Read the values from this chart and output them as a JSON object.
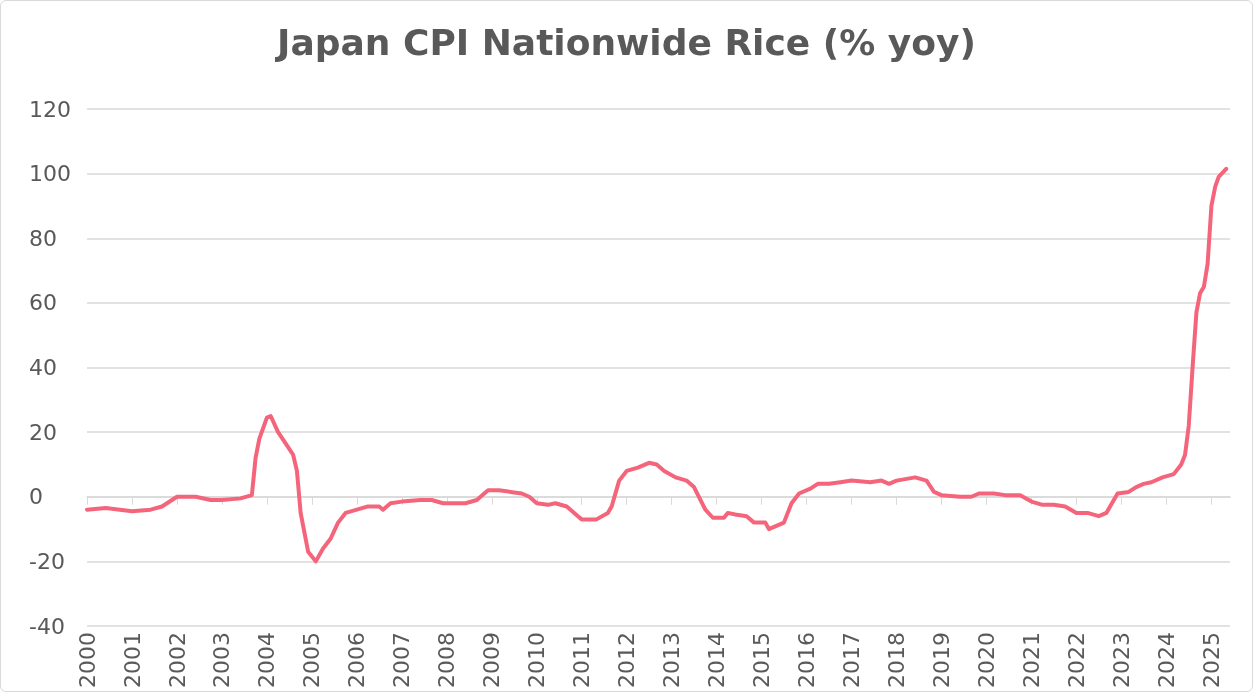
{
  "chart_data": {
    "type": "line",
    "title": "Japan CPI Nationwide Rice (% yoy)",
    "x": [
      "2000-01",
      "2000-06",
      "2001-01",
      "2001-06",
      "2001-09",
      "2002-01",
      "2002-06",
      "2002-10",
      "2003-01",
      "2003-06",
      "2003-09",
      "2003-10",
      "2003-11",
      "2004-01",
      "2004-02",
      "2004-04",
      "2004-06",
      "2004-08",
      "2004-09",
      "2004-10",
      "2004-12",
      "2005-02",
      "2005-04",
      "2005-06",
      "2005-08",
      "2005-10",
      "2006-01",
      "2006-04",
      "2006-07",
      "2006-08",
      "2006-10",
      "2007-01",
      "2007-06",
      "2007-09",
      "2007-12",
      "2008-06",
      "2008-09",
      "2008-12",
      "2009-03",
      "2009-06",
      "2009-09",
      "2009-11",
      "2010-01",
      "2010-04",
      "2010-06",
      "2010-09",
      "2010-12",
      "2011-01",
      "2011-05",
      "2011-08",
      "2011-09",
      "2011-11",
      "2012-01",
      "2012-04",
      "2012-07",
      "2012-09",
      "2012-11",
      "2013-02",
      "2013-05",
      "2013-07",
      "2013-10",
      "2013-12",
      "2014-03",
      "2014-04",
      "2014-06",
      "2014-09",
      "2014-11",
      "2015-02",
      "2015-03",
      "2015-05",
      "2015-07",
      "2015-09",
      "2015-11",
      "2016-02",
      "2016-04",
      "2016-07",
      "2016-10",
      "2017-01",
      "2017-06",
      "2017-09",
      "2017-11",
      "2018-01",
      "2018-06",
      "2018-09",
      "2018-11",
      "2019-01",
      "2019-06",
      "2019-09",
      "2019-11",
      "2020-03",
      "2020-06",
      "2020-10",
      "2021-01",
      "2021-04",
      "2021-07",
      "2021-10",
      "2022-01",
      "2022-04",
      "2022-07",
      "2022-09",
      "2022-12",
      "2023-03",
      "2023-05",
      "2023-07",
      "2023-09",
      "2023-12",
      "2024-03",
      "2024-05",
      "2024-06",
      "2024-07",
      "2024-08",
      "2024-09",
      "2024-10",
      "2024-11",
      "2024-12",
      "2025-01",
      "2025-02",
      "2025-03",
      "2025-05"
    ],
    "series": [
      {
        "color": "#f4657c",
        "values": [
          -4,
          -3.5,
          -4.5,
          -4,
          -3,
          0,
          0,
          -1,
          -1,
          -0.5,
          0.5,
          12,
          18,
          24.5,
          25,
          20,
          16.5,
          13,
          8,
          -5,
          -17,
          -20,
          -16,
          -13,
          -8,
          -5,
          -4,
          -3,
          -3,
          -4,
          -2,
          -1.5,
          -1,
          -1,
          -2,
          -2,
          -1,
          2,
          2,
          1.5,
          1,
          0,
          -2,
          -2.5,
          -2,
          -3,
          -6,
          -7,
          -7,
          -5,
          -3,
          5,
          8,
          9,
          10.5,
          10,
          8,
          6,
          5,
          3,
          -4,
          -6.5,
          -6.5,
          -5,
          -5.5,
          -6,
          -8,
          -8,
          -10,
          -9,
          -8,
          -2,
          1,
          2.5,
          4,
          4,
          4.5,
          5,
          4.5,
          5,
          4,
          5,
          6,
          5,
          1.5,
          0.5,
          0,
          0,
          1,
          1,
          0.5,
          0.5,
          -1.5,
          -2.5,
          -2.5,
          -3,
          -5,
          -5,
          -6,
          -5,
          1,
          1.5,
          3,
          4,
          4.5,
          6,
          7,
          10,
          13,
          22,
          40,
          57,
          63,
          65,
          72,
          90,
          96,
          99,
          101.5
        ]
      }
    ],
    "xlim": [
      "2000-01",
      "2025-06"
    ],
    "xticks": [
      "2000",
      "2001",
      "2002",
      "2003",
      "2004",
      "2005",
      "2006",
      "2007",
      "2008",
      "2009",
      "2010",
      "2011",
      "2012",
      "2013",
      "2014",
      "2015",
      "2016",
      "2017",
      "2018",
      "2019",
      "2020",
      "2021",
      "2022",
      "2023",
      "2024",
      "2025"
    ],
    "ylim": [
      -40,
      120
    ],
    "yticks": [
      -40,
      -20,
      0,
      20,
      40,
      60,
      80,
      100,
      120
    ],
    "grid": "y",
    "marker": "none",
    "line_style": "solid"
  }
}
